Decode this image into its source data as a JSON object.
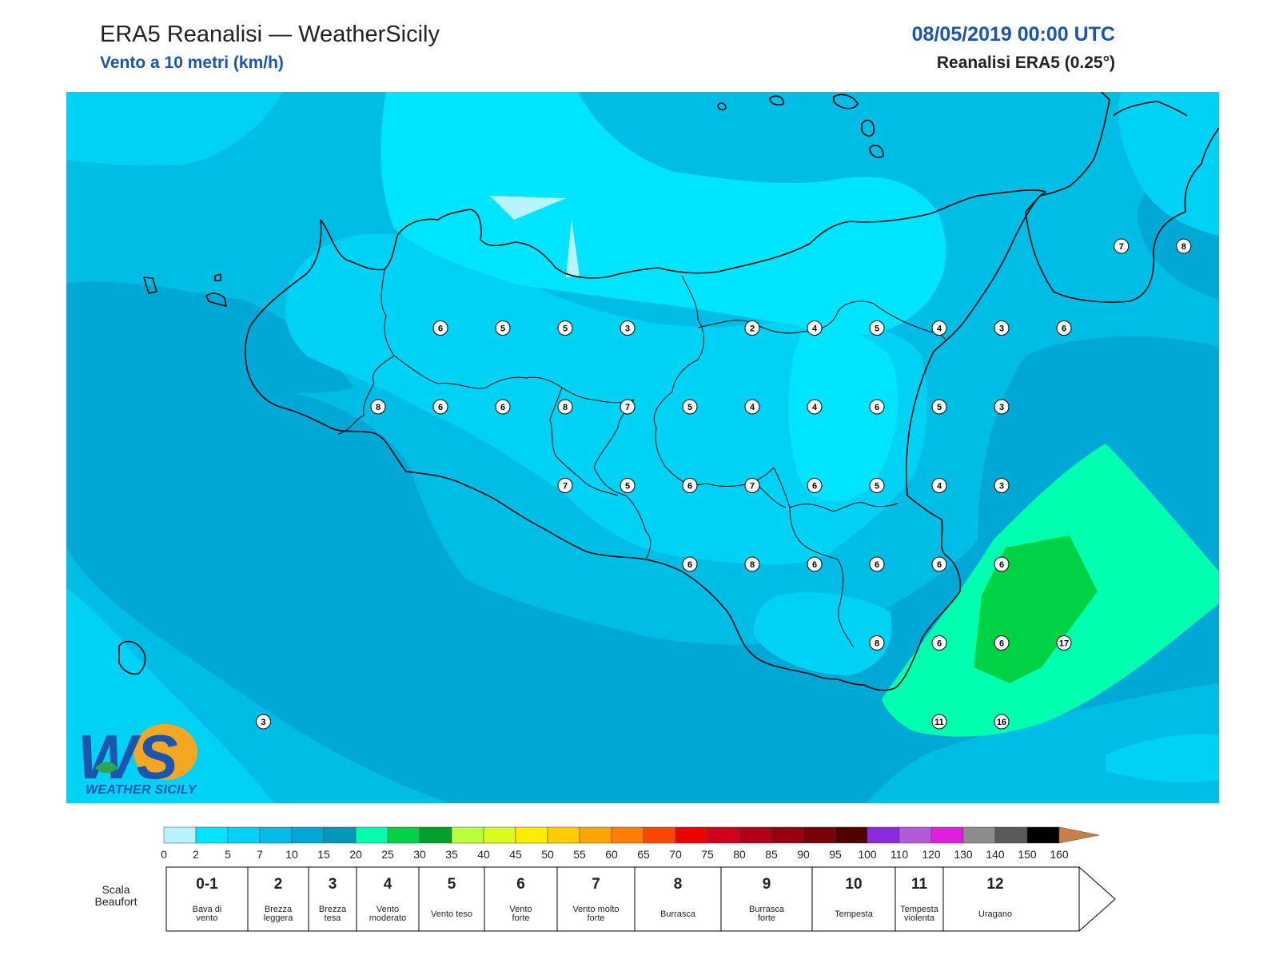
{
  "header": {
    "title": "ERA5 Reanalisi — WeatherSicily",
    "subtitle": "Vento a 10 metri (km/h)",
    "datetime": "08/05/2019 00:00 UTC",
    "source": "Reanalisi ERA5 (0.25°)"
  },
  "logo": {
    "text": "WEATHER SICILY",
    "initials": "WS"
  },
  "map": {
    "stations": [
      {
        "v": "7",
        "lon": 15.48,
        "lat": 38.26
      },
      {
        "v": "8",
        "lon": 15.73,
        "lat": 38.26
      },
      {
        "v": "6",
        "lon": 12.75,
        "lat": 38.0
      },
      {
        "v": "5",
        "lon": 13.0,
        "lat": 38.0
      },
      {
        "v": "5",
        "lon": 13.25,
        "lat": 38.0
      },
      {
        "v": "3",
        "lon": 13.5,
        "lat": 38.0
      },
      {
        "v": "2",
        "lon": 14.0,
        "lat": 38.0
      },
      {
        "v": "4",
        "lon": 14.25,
        "lat": 38.0
      },
      {
        "v": "5",
        "lon": 14.5,
        "lat": 38.0
      },
      {
        "v": "4",
        "lon": 14.75,
        "lat": 38.0
      },
      {
        "v": "3",
        "lon": 15.0,
        "lat": 38.0
      },
      {
        "v": "6",
        "lon": 15.25,
        "lat": 38.0
      },
      {
        "v": "8",
        "lon": 12.5,
        "lat": 37.75
      },
      {
        "v": "6",
        "lon": 12.75,
        "lat": 37.75
      },
      {
        "v": "6",
        "lon": 13.0,
        "lat": 37.75
      },
      {
        "v": "8",
        "lon": 13.25,
        "lat": 37.75
      },
      {
        "v": "7",
        "lon": 13.5,
        "lat": 37.75
      },
      {
        "v": "5",
        "lon": 13.75,
        "lat": 37.75
      },
      {
        "v": "4",
        "lon": 14.0,
        "lat": 37.75
      },
      {
        "v": "4",
        "lon": 14.25,
        "lat": 37.75
      },
      {
        "v": "6",
        "lon": 14.5,
        "lat": 37.75
      },
      {
        "v": "5",
        "lon": 14.75,
        "lat": 37.75
      },
      {
        "v": "3",
        "lon": 15.0,
        "lat": 37.75
      },
      {
        "v": "7",
        "lon": 13.25,
        "lat": 37.5
      },
      {
        "v": "5",
        "lon": 13.5,
        "lat": 37.5
      },
      {
        "v": "6",
        "lon": 13.75,
        "lat": 37.5
      },
      {
        "v": "7",
        "lon": 14.0,
        "lat": 37.5
      },
      {
        "v": "6",
        "lon": 14.25,
        "lat": 37.5
      },
      {
        "v": "5",
        "lon": 14.5,
        "lat": 37.5
      },
      {
        "v": "4",
        "lon": 14.75,
        "lat": 37.5
      },
      {
        "v": "3",
        "lon": 15.0,
        "lat": 37.5
      },
      {
        "v": "6",
        "lon": 13.75,
        "lat": 37.25
      },
      {
        "v": "8",
        "lon": 14.0,
        "lat": 37.25
      },
      {
        "v": "6",
        "lon": 14.25,
        "lat": 37.25
      },
      {
        "v": "6",
        "lon": 14.5,
        "lat": 37.25
      },
      {
        "v": "6",
        "lon": 14.75,
        "lat": 37.25
      },
      {
        "v": "6",
        "lon": 15.0,
        "lat": 37.25
      },
      {
        "v": "8",
        "lon": 14.5,
        "lat": 37.0
      },
      {
        "v": "6",
        "lon": 14.75,
        "lat": 37.0
      },
      {
        "v": "6",
        "lon": 15.0,
        "lat": 37.0
      },
      {
        "v": "17",
        "lon": 15.25,
        "lat": 37.0
      },
      {
        "v": "11",
        "lon": 14.75,
        "lat": 36.75
      },
      {
        "v": "16",
        "lon": 15.0,
        "lat": 36.75
      },
      {
        "v": "3",
        "lon": 12.04,
        "lat": 36.75
      }
    ]
  },
  "colorbar": {
    "ticks": [
      "0",
      "2",
      "5",
      "7",
      "10",
      "15",
      "20",
      "25",
      "30",
      "35",
      "40",
      "45",
      "50",
      "55",
      "60",
      "65",
      "70",
      "75",
      "80",
      "85",
      "90",
      "95",
      "100",
      "110",
      "120",
      "130",
      "140",
      "150",
      "160"
    ],
    "colors": [
      "#b7f4ff",
      "#00e5ff",
      "#00d2f5",
      "#00bde6",
      "#00a8d6",
      "#0097b8",
      "#00ffae",
      "#00d246",
      "#00a02a",
      "#b9ff3c",
      "#dbfa1e",
      "#ffed00",
      "#ffcd00",
      "#ffa500",
      "#ff7d00",
      "#ff4600",
      "#f00000",
      "#d2001e",
      "#b40016",
      "#960010",
      "#780008",
      "#500000",
      "#8c2ae0",
      "#b45ad8",
      "#e01ee0",
      "#8c8c8c",
      "#5a5a5a",
      "#000000",
      "#8c4a28",
      "#c8804a"
    ]
  },
  "beaufort": {
    "label": "Scala Beaufort",
    "label_line1": "Scala",
    "label_line2": "Beaufort",
    "cells": [
      {
        "num": "0-1",
        "l1": "Bava di",
        "l2": "vento"
      },
      {
        "num": "2",
        "l1": "Brezza",
        "l2": "leggera"
      },
      {
        "num": "3",
        "l1": "Brezza",
        "l2": "tesa"
      },
      {
        "num": "4",
        "l1": "Vento",
        "l2": "moderato"
      },
      {
        "num": "5",
        "l1": "Vento teso",
        "l2": ""
      },
      {
        "num": "6",
        "l1": "Vento",
        "l2": "forte"
      },
      {
        "num": "7",
        "l1": "Vento molto",
        "l2": "forte"
      },
      {
        "num": "8",
        "l1": "Burrasca",
        "l2": ""
      },
      {
        "num": "9",
        "l1": "Burrasca",
        "l2": "forte"
      },
      {
        "num": "10",
        "l1": "Tempesta",
        "l2": ""
      },
      {
        "num": "11",
        "l1": "Tempesta",
        "l2": "violenta"
      },
      {
        "num": "12",
        "l1": "Uragano",
        "l2": ""
      }
    ]
  }
}
